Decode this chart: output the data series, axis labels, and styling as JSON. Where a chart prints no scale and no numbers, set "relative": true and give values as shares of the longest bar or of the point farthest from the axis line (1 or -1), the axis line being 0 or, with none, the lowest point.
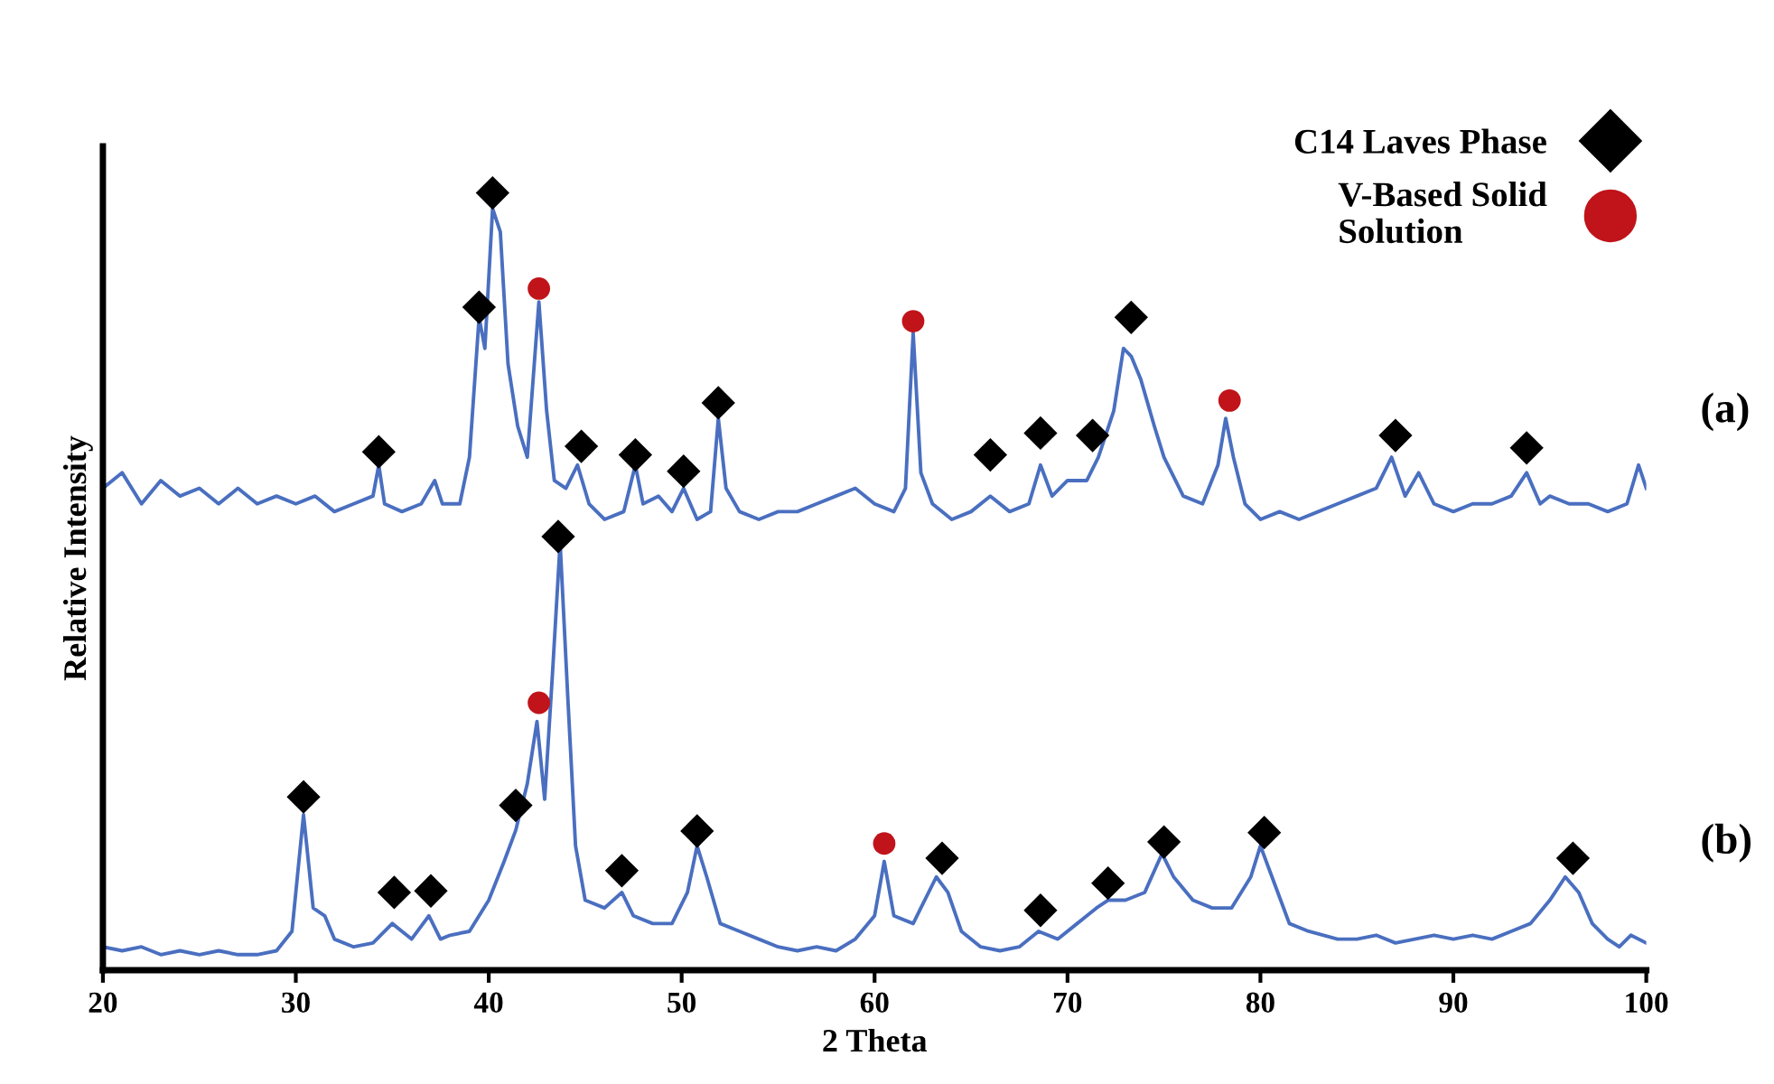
{
  "chart_data": {
    "type": "line",
    "relative": true,
    "xlabel": "2 Theta",
    "ylabel": "Relative Intensity",
    "xlim": [
      20,
      100
    ],
    "xticks": [
      20,
      30,
      40,
      50,
      60,
      70,
      80,
      90,
      100
    ],
    "tick_labels": "x",
    "legend": "top right",
    "grid": false,
    "series": [
      {
        "name": "(a)",
        "color": "#4a6fc0",
        "marker": "none",
        "line_style": "solid",
        "x": [
          20,
          21,
          22,
          23,
          24,
          25,
          26,
          27,
          28,
          29,
          30,
          31,
          32,
          33,
          34,
          34.3,
          34.6,
          35.5,
          36.5,
          37.2,
          37.6,
          38.5,
          39,
          39.5,
          39.8,
          40.2,
          40.6,
          41.0,
          41.5,
          42.0,
          42.6,
          43.0,
          43.4,
          44.0,
          44.6,
          45.2,
          46,
          47,
          47.6,
          48,
          48.8,
          49.5,
          50.1,
          50.8,
          51.5,
          51.9,
          52.3,
          53,
          54,
          55,
          56,
          57,
          58,
          59,
          60,
          61,
          61.6,
          62.0,
          62.4,
          63,
          64,
          65,
          66,
          67,
          68,
          68.6,
          69.2,
          70,
          71,
          71.6,
          72.4,
          72.9,
          73.3,
          73.8,
          74.5,
          75,
          76,
          77,
          77.8,
          78.2,
          78.6,
          79.2,
          80,
          81,
          82,
          83,
          84,
          85,
          86,
          86.8,
          87.5,
          88.2,
          89,
          90,
          91,
          92,
          93,
          93.8,
          94.5,
          95,
          96,
          97,
          98,
          99,
          99.6,
          100
        ],
        "values": [
          0.62,
          0.64,
          0.6,
          0.63,
          0.61,
          0.62,
          0.6,
          0.62,
          0.6,
          0.61,
          0.6,
          0.61,
          0.59,
          0.6,
          0.61,
          0.65,
          0.6,
          0.59,
          0.6,
          0.63,
          0.6,
          0.6,
          0.66,
          0.84,
          0.8,
          0.98,
          0.95,
          0.78,
          0.7,
          0.66,
          0.86,
          0.72,
          0.63,
          0.62,
          0.65,
          0.6,
          0.58,
          0.59,
          0.65,
          0.6,
          0.61,
          0.59,
          0.62,
          0.58,
          0.59,
          0.71,
          0.62,
          0.59,
          0.58,
          0.59,
          0.59,
          0.6,
          0.61,
          0.62,
          0.6,
          0.59,
          0.62,
          0.82,
          0.64,
          0.6,
          0.58,
          0.59,
          0.61,
          0.59,
          0.6,
          0.65,
          0.61,
          0.63,
          0.63,
          0.66,
          0.72,
          0.8,
          0.79,
          0.76,
          0.7,
          0.66,
          0.61,
          0.6,
          0.65,
          0.71,
          0.66,
          0.6,
          0.58,
          0.59,
          0.58,
          0.59,
          0.6,
          0.61,
          0.62,
          0.66,
          0.61,
          0.64,
          0.6,
          0.59,
          0.6,
          0.6,
          0.61,
          0.64,
          0.6,
          0.61,
          0.6,
          0.6,
          0.59,
          0.6,
          0.65,
          0.62
        ]
      },
      {
        "name": "(b)",
        "color": "#4a6fc0",
        "marker": "none",
        "line_style": "solid",
        "x": [
          20,
          21,
          22,
          23,
          24,
          25,
          26,
          27,
          28,
          29,
          29.8,
          30.4,
          30.9,
          31.5,
          32,
          33,
          34,
          35,
          35.5,
          36,
          36.9,
          37.5,
          38,
          39,
          40,
          40.8,
          41.4,
          42.0,
          42.5,
          42.9,
          43.3,
          43.7,
          44.1,
          44.5,
          45,
          46,
          46.9,
          47.5,
          48.5,
          49.5,
          50.3,
          50.8,
          51.3,
          52,
          53,
          54,
          55,
          56,
          57,
          58,
          59,
          60,
          60.5,
          61,
          62,
          63.2,
          63.8,
          64.5,
          65.5,
          66.5,
          67.5,
          68.5,
          69.5,
          70.5,
          71.5,
          72.1,
          73,
          74,
          74.9,
          75.5,
          76.5,
          77.5,
          78.5,
          79.5,
          80,
          80.6,
          81.5,
          82.5,
          84,
          85,
          86,
          87,
          88,
          89,
          90,
          91,
          92,
          93,
          94,
          95,
          95.8,
          96.5,
          97.2,
          98,
          98.6,
          99.2,
          100
        ],
        "values": [
          0.03,
          0.025,
          0.03,
          0.02,
          0.025,
          0.02,
          0.025,
          0.02,
          0.02,
          0.025,
          0.05,
          0.2,
          0.08,
          0.07,
          0.04,
          0.03,
          0.035,
          0.06,
          0.05,
          0.04,
          0.07,
          0.04,
          0.045,
          0.05,
          0.09,
          0.14,
          0.18,
          0.24,
          0.32,
          0.22,
          0.38,
          0.55,
          0.35,
          0.16,
          0.09,
          0.08,
          0.1,
          0.07,
          0.06,
          0.06,
          0.1,
          0.16,
          0.12,
          0.06,
          0.05,
          0.04,
          0.03,
          0.025,
          0.03,
          0.025,
          0.04,
          0.07,
          0.14,
          0.07,
          0.06,
          0.12,
          0.1,
          0.05,
          0.03,
          0.025,
          0.03,
          0.05,
          0.04,
          0.06,
          0.08,
          0.09,
          0.09,
          0.1,
          0.15,
          0.12,
          0.09,
          0.08,
          0.08,
          0.12,
          0.16,
          0.12,
          0.06,
          0.05,
          0.04,
          0.04,
          0.045,
          0.035,
          0.04,
          0.045,
          0.04,
          0.045,
          0.04,
          0.05,
          0.06,
          0.09,
          0.12,
          0.1,
          0.06,
          0.04,
          0.03,
          0.045,
          0.035
        ]
      },
      {
        "name": "C14 Laves Phase",
        "type": "scatter",
        "color": "#000000",
        "marker": "diamond",
        "x": [
          34.3,
          39.5,
          40.2,
          44.8,
          47.6,
          50.1,
          51.9,
          66.0,
          68.6,
          71.3,
          73.3,
          87.0,
          93.8,
          30.4,
          35.1,
          37.0,
          41.4,
          43.6,
          46.9,
          50.8,
          63.5,
          68.6,
          72.1,
          75.0,
          80.2,
          96.2
        ],
        "values": [
          0.667,
          0.853,
          1.0,
          0.674,
          0.663,
          0.642,
          0.73,
          0.663,
          0.691,
          0.688,
          0.84,
          0.688,
          0.672,
          0.223,
          0.1,
          0.102,
          0.212,
          0.558,
          0.128,
          0.179,
          0.144,
          0.077,
          0.112,
          0.165,
          0.177,
          0.144
        ]
      },
      {
        "name": "V-Based Solid Solution",
        "type": "scatter",
        "color": "#c0141a",
        "marker": "circle",
        "x": [
          42.6,
          62.0,
          78.4,
          42.6,
          60.5
        ],
        "values": [
          0.877,
          0.835,
          0.733,
          0.344,
          0.163
        ]
      }
    ]
  }
}
